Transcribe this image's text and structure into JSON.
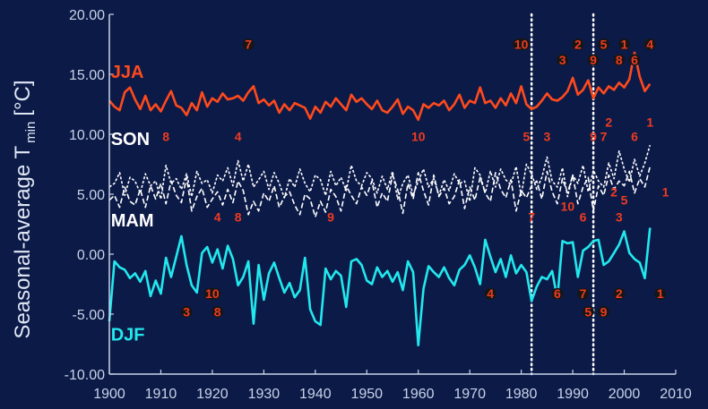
{
  "chart_data": {
    "type": "line",
    "ylabel_main": "Seasonal-average T",
    "ylabel_sub": "min",
    "ylabel_unit": "[°C]",
    "xlim": [
      1900,
      2010
    ],
    "ylim": [
      -10,
      20
    ],
    "x_ticks": [
      "1900",
      "1910",
      "1920",
      "1930",
      "1940",
      "1950",
      "1960",
      "1970",
      "1980",
      "1990",
      "2000",
      "2010"
    ],
    "y_ticks": [
      "20.00",
      "15.00",
      "10.00",
      "5.00",
      "0.00",
      "-5.00",
      "-10.00"
    ],
    "vlines": [
      1982,
      1994
    ],
    "colors": {
      "JJA": "#ff4a1c",
      "SON": "#ffffff",
      "MAM": "#ffffff",
      "DJF": "#22e8ee",
      "axis": "#c9d3e8",
      "rank": "#ee3b20"
    },
    "series": [
      {
        "name": "JJA",
        "start_year": 1900,
        "values": [
          12.8,
          12.3,
          12.0,
          13.5,
          13.9,
          12.9,
          12.1,
          13.2,
          12.0,
          12.5,
          11.9,
          12.8,
          13.6,
          12.4,
          12.2,
          11.6,
          12.6,
          12.0,
          13.5,
          12.3,
          13.0,
          12.7,
          13.4,
          12.9,
          13.0,
          13.2,
          12.8,
          13.5,
          14.0,
          12.6,
          12.9,
          12.4,
          12.8,
          11.8,
          12.5,
          12.0,
          12.6,
          12.4,
          12.2,
          11.3,
          12.3,
          11.8,
          12.7,
          12.3,
          13.0,
          12.5,
          12.0,
          13.3,
          12.7,
          13.0,
          12.5,
          12.1,
          12.8,
          12.0,
          11.8,
          12.3,
          12.9,
          11.7,
          12.3,
          12.0,
          11.2,
          12.5,
          12.2,
          12.6,
          12.4,
          12.8,
          12.0,
          12.5,
          13.3,
          12.2,
          12.8,
          12.6,
          13.9,
          12.6,
          12.8,
          12.2,
          13.0,
          12.4,
          13.4,
          12.6,
          14.0,
          12.5,
          12.1,
          12.3,
          12.8,
          13.4,
          12.9,
          12.8,
          13.1,
          13.6,
          14.7,
          13.3,
          13.7,
          14.5,
          13.0,
          13.9,
          13.4,
          14.0,
          13.7,
          14.3,
          13.9,
          14.6,
          16.8,
          14.8,
          13.6,
          14.2
        ]
      },
      {
        "name": "SON",
        "start_year": 1900,
        "values": [
          5.6,
          5.9,
          6.8,
          4.9,
          6.4,
          6.1,
          5.1,
          6.7,
          5.7,
          6.1,
          4.6,
          7.4,
          5.9,
          6.3,
          5.4,
          6.7,
          4.8,
          6.9,
          5.9,
          6.2,
          5.1,
          6.6,
          6.1,
          7.2,
          5.7,
          7.8,
          6.1,
          7.5,
          5.6,
          6.2,
          6.9,
          5.4,
          6.8,
          5.9,
          4.7,
          6.3,
          5.6,
          7.1,
          5.9,
          5.2,
          6.6,
          6.2,
          4.9,
          6.9,
          5.7,
          6.4,
          5.3,
          7.4,
          6.1,
          5.7,
          6.8,
          6.3,
          5.1,
          6.5,
          5.4,
          6.9,
          4.6,
          5.9,
          6.6,
          4.9,
          6.1,
          7.1,
          5.6,
          6.3,
          4.9,
          6.2,
          5.3,
          6.7,
          5.9,
          6.1,
          4.4,
          7.2,
          6.6,
          5.1,
          6.9,
          5.6,
          7.1,
          6.2,
          5.8,
          7.3,
          4.9,
          7.5,
          6.7,
          5.4,
          6.4,
          8.1,
          6.1,
          5.6,
          7.2,
          4.8,
          6.6,
          5.9,
          7.4,
          5.2,
          7.0,
          6.1,
          5.6,
          7.6,
          6.3,
          8.6,
          7.1,
          6.0,
          7.9,
          6.5,
          7.6,
          9.1
        ]
      },
      {
        "name": "MAM",
        "start_year": 1900,
        "values": [
          4.5,
          4.9,
          3.9,
          5.6,
          4.4,
          4.1,
          5.4,
          3.9,
          5.7,
          4.6,
          5.9,
          4.2,
          6.1,
          4.9,
          4.3,
          6.4,
          3.6,
          4.8,
          5.5,
          3.9,
          4.6,
          5.2,
          4.1,
          5.4,
          4.3,
          6.1,
          5.3,
          3.3,
          4.4,
          3.6,
          5.1,
          4.4,
          5.7,
          3.9,
          4.8,
          5.2,
          4.1,
          3.3,
          5.0,
          4.6,
          3.1,
          4.4,
          3.5,
          5.4,
          4.8,
          3.6,
          5.7,
          4.9,
          4.2,
          5.6,
          4.9,
          6.1,
          3.9,
          5.1,
          4.4,
          6.6,
          5.4,
          3.4,
          5.9,
          4.6,
          6.8,
          5.3,
          4.1,
          6.6,
          4.8,
          5.5,
          4.2,
          4.8,
          6.2,
          3.8,
          5.6,
          4.5,
          6.4,
          5.1,
          4.4,
          6.8,
          5.4,
          4.7,
          6.2,
          3.6,
          5.3,
          4.7,
          5.7,
          6.1,
          4.6,
          6.9,
          5.2,
          4.2,
          6.3,
          5.1,
          6.6,
          4.2,
          5.6,
          6.4,
          3.6,
          5.7,
          4.9,
          6.6,
          5.4,
          6.1,
          5.7,
          6.9,
          5.1,
          6.3,
          5.6,
          7.3
        ]
      },
      {
        "name": "DJF",
        "start_year": 1900,
        "values": [
          -5.6,
          -0.6,
          -1.1,
          -1.3,
          -2.0,
          -1.6,
          -2.3,
          -1.4,
          -3.5,
          -2.2,
          -3.3,
          -0.3,
          -1.9,
          -0.2,
          1.5,
          -0.9,
          -2.6,
          -3.2,
          0.1,
          0.6,
          -0.7,
          0.4,
          -1.2,
          0.7,
          -0.4,
          -2.6,
          -1.9,
          -0.6,
          -5.8,
          -0.9,
          -3.8,
          -1.6,
          -0.7,
          -2.0,
          -3.2,
          -2.4,
          -3.6,
          -3.0,
          -0.3,
          -4.6,
          -5.6,
          -5.9,
          -1.2,
          -2.1,
          -1.4,
          -1.8,
          -4.4,
          -0.6,
          -0.4,
          -0.9,
          -2.2,
          -2.5,
          -1.1,
          -1.9,
          -1.4,
          -2.3,
          -1.5,
          -3.0,
          -0.6,
          -1.5,
          -7.6,
          -2.9,
          -1.0,
          -1.5,
          -1.9,
          -1.1,
          -2.0,
          -2.6,
          -1.3,
          -0.9,
          -0.1,
          -1.1,
          -2.5,
          1.2,
          -0.2,
          -1.5,
          -0.4,
          -1.9,
          -0.1,
          -1.6,
          -0.9,
          -1.5,
          -3.9,
          -2.7,
          -1.9,
          -2.1,
          -1.4,
          -3.7,
          1.1,
          0.9,
          1.0,
          -1.9,
          0.3,
          0.6,
          1.1,
          1.2,
          -0.9,
          -0.6,
          0.1,
          0.8,
          1.9,
          0.1,
          -0.4,
          -0.7,
          -2.0,
          2.2
        ]
      }
    ],
    "series_labels": [
      {
        "name": "JJA",
        "text": "JJA",
        "x": 1900.3,
        "y": 14.7
      },
      {
        "name": "SON",
        "text": "SON",
        "x": 1900.3,
        "y": 9.1
      },
      {
        "name": "MAM",
        "text": "MAM",
        "x": 1900.3,
        "y": 2.3
      },
      {
        "name": "DJF",
        "text": "DJF",
        "x": 1900.3,
        "y": -7.2
      }
    ],
    "rank_markers": [
      {
        "label": "7",
        "year": 1927,
        "value": 17.5,
        "marker": true
      },
      {
        "label": "10",
        "year": 1980,
        "value": 17.5,
        "marker": true
      },
      {
        "label": "2",
        "year": 1991,
        "value": 17.5,
        "marker": true
      },
      {
        "label": "5",
        "year": 1996,
        "value": 17.5,
        "marker": true
      },
      {
        "label": "1",
        "year": 2000,
        "value": 17.5,
        "marker": true
      },
      {
        "label": "4",
        "year": 2005,
        "value": 17.5,
        "marker": true
      },
      {
        "label": "3",
        "year": 1988,
        "value": 16.2,
        "marker": true
      },
      {
        "label": "9",
        "year": 1994,
        "value": 16.2,
        "marker": true
      },
      {
        "label": "8",
        "year": 1999,
        "value": 16.2,
        "marker": true
      },
      {
        "label": "6",
        "year": 2002,
        "value": 16.2,
        "marker": true
      },
      {
        "label": "2",
        "year": 1997,
        "value": 11.0,
        "marker": false
      },
      {
        "label": "1",
        "year": 2005,
        "value": 11.0,
        "marker": false
      },
      {
        "label": "8",
        "year": 1911,
        "value": 9.8,
        "marker": false
      },
      {
        "label": "4",
        "year": 1925,
        "value": 9.8,
        "marker": false
      },
      {
        "label": "10",
        "year": 1960,
        "value": 9.8,
        "marker": false
      },
      {
        "label": "5",
        "year": 1981,
        "value": 9.8,
        "marker": false
      },
      {
        "label": "3",
        "year": 1985,
        "value": 9.8,
        "marker": false
      },
      {
        "label": "9",
        "year": 1994,
        "value": 9.8,
        "marker": false
      },
      {
        "label": "7",
        "year": 1996,
        "value": 9.8,
        "marker": false
      },
      {
        "label": "6",
        "year": 2002,
        "value": 9.8,
        "marker": false
      },
      {
        "label": "2",
        "year": 1998,
        "value": 5.2,
        "marker": false
      },
      {
        "label": "1",
        "year": 2008,
        "value": 5.2,
        "marker": false
      },
      {
        "label": "5",
        "year": 2000,
        "value": 4.5,
        "marker": false
      },
      {
        "label": "4",
        "year": 1921,
        "value": 3.1,
        "marker": false
      },
      {
        "label": "8",
        "year": 1925,
        "value": 3.1,
        "marker": false
      },
      {
        "label": "9",
        "year": 1943,
        "value": 3.1,
        "marker": false
      },
      {
        "label": "7",
        "year": 1982,
        "value": 3.1,
        "marker": false
      },
      {
        "label": "10",
        "year": 1989,
        "value": 4.0,
        "marker": false
      },
      {
        "label": "6",
        "year": 1992,
        "value": 3.1,
        "marker": false
      },
      {
        "label": "3",
        "year": 1999,
        "value": 3.1,
        "marker": false
      },
      {
        "label": "10",
        "year": 1920,
        "value": -3.3,
        "marker": true
      },
      {
        "label": "4",
        "year": 1974,
        "value": -3.3,
        "marker": true
      },
      {
        "label": "6",
        "year": 1987,
        "value": -3.3,
        "marker": true
      },
      {
        "label": "7",
        "year": 1992,
        "value": -3.3,
        "marker": true
      },
      {
        "label": "2",
        "year": 1999,
        "value": -3.3,
        "marker": true
      },
      {
        "label": "1",
        "year": 2007,
        "value": -3.3,
        "marker": true
      },
      {
        "label": "3",
        "year": 1915,
        "value": -4.8,
        "marker": true
      },
      {
        "label": "8",
        "year": 1921,
        "value": -4.8,
        "marker": true
      },
      {
        "label": "5",
        "year": 1993,
        "value": -4.8,
        "marker": true
      },
      {
        "label": "9",
        "year": 1996,
        "value": -4.8,
        "marker": true
      }
    ]
  }
}
